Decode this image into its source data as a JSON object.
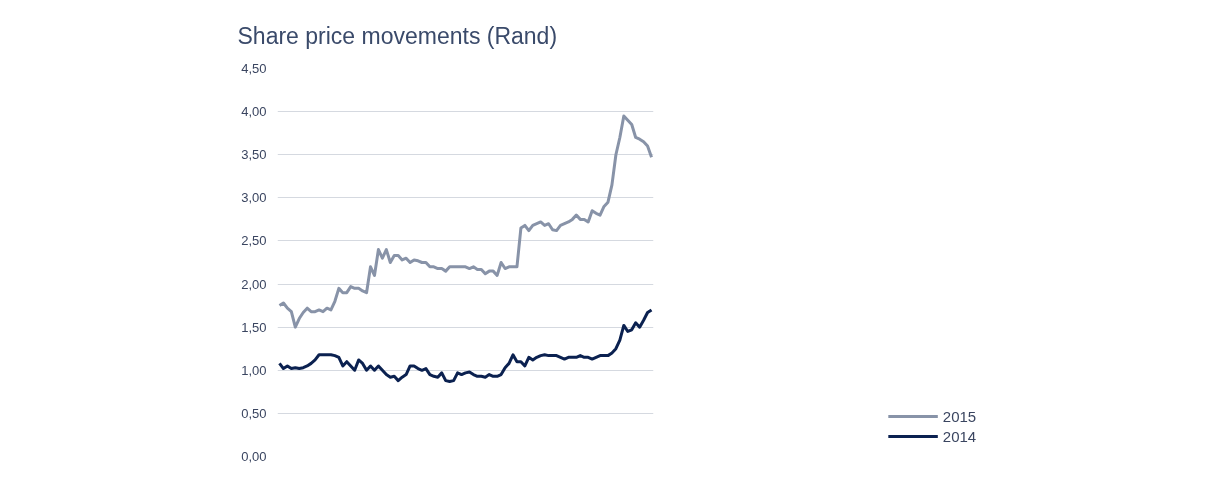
{
  "chart_data": {
    "type": "line",
    "title": "Share price movements (Rand)",
    "categories": [
      null,
      null,
      null,
      null,
      null,
      null,
      null,
      null,
      null,
      null,
      null,
      null,
      null,
      null,
      null,
      null,
      null,
      null,
      null,
      null,
      null,
      null,
      null,
      null,
      null,
      null,
      null,
      null,
      null,
      null,
      null,
      null,
      null,
      null,
      null,
      null,
      null,
      null,
      null,
      null,
      null,
      null,
      null,
      null,
      null,
      null,
      null,
      null,
      null,
      null,
      null,
      null,
      null,
      null,
      null,
      null,
      null,
      null,
      null,
      null,
      null,
      null,
      null,
      null,
      null,
      null,
      null,
      null,
      null,
      null,
      null,
      null,
      null,
      null,
      null,
      null,
      null,
      null,
      null,
      null,
      null,
      null,
      null,
      null,
      null,
      null,
      null,
      null,
      null,
      null,
      null,
      null,
      null,
      null,
      null
    ],
    "series": [
      {
        "name": "2015",
        "color": "#8893a8",
        "values": [
          1.75,
          1.78,
          1.72,
          1.68,
          1.5,
          1.6,
          1.67,
          1.72,
          1.68,
          1.68,
          1.7,
          1.68,
          1.72,
          1.7,
          1.8,
          1.95,
          1.9,
          1.9,
          1.97,
          1.95,
          1.95,
          1.92,
          1.9,
          2.2,
          2.1,
          2.4,
          2.3,
          2.4,
          2.25,
          2.33,
          2.33,
          2.28,
          2.3,
          2.25,
          2.28,
          2.27,
          2.25,
          2.25,
          2.2,
          2.2,
          2.18,
          2.18,
          2.15,
          2.2,
          2.2,
          2.2,
          2.2,
          2.2,
          2.18,
          2.2,
          2.17,
          2.17,
          2.12,
          2.15,
          2.15,
          2.1,
          2.25,
          2.18,
          2.2,
          2.2,
          2.2,
          2.65,
          2.68,
          2.62,
          2.68,
          2.7,
          2.72,
          2.68,
          2.7,
          2.63,
          2.62,
          2.68,
          2.7,
          2.72,
          2.75,
          2.8,
          2.75,
          2.75,
          2.72,
          2.85,
          2.82,
          2.8,
          2.9,
          2.95,
          3.15,
          3.5,
          3.7,
          3.95,
          3.9,
          3.85,
          3.7,
          3.68,
          3.65,
          3.6,
          3.47
        ]
      },
      {
        "name": "2014",
        "color": "#0b2150",
        "values": [
          1.08,
          1.02,
          1.05,
          1.02,
          1.03,
          1.02,
          1.03,
          1.05,
          1.08,
          1.12,
          1.18,
          1.18,
          1.18,
          1.18,
          1.17,
          1.15,
          1.05,
          1.1,
          1.05,
          1.0,
          1.12,
          1.08,
          1.0,
          1.05,
          1.0,
          1.05,
          1.0,
          0.95,
          0.92,
          0.93,
          0.88,
          0.92,
          0.95,
          1.05,
          1.05,
          1.02,
          1.0,
          1.02,
          0.95,
          0.93,
          0.92,
          0.97,
          0.88,
          0.87,
          0.88,
          0.97,
          0.95,
          0.97,
          0.98,
          0.95,
          0.93,
          0.93,
          0.92,
          0.95,
          0.93,
          0.93,
          0.95,
          1.03,
          1.08,
          1.18,
          1.1,
          1.1,
          1.05,
          1.15,
          1.12,
          1.15,
          1.17,
          1.18,
          1.17,
          1.17,
          1.17,
          1.15,
          1.13,
          1.15,
          1.15,
          1.15,
          1.17,
          1.15,
          1.15,
          1.13,
          1.15,
          1.17,
          1.17,
          1.17,
          1.2,
          1.25,
          1.35,
          1.52,
          1.45,
          1.47,
          1.55,
          1.5,
          1.58,
          1.67,
          1.7
        ]
      }
    ],
    "ylim": [
      0,
      4.5
    ],
    "yticks": [
      {
        "value": 0,
        "label": "0,00"
      },
      {
        "value": 0.5,
        "label": "0,50"
      },
      {
        "value": 1,
        "label": "1,00"
      },
      {
        "value": 1.5,
        "label": "1,50"
      },
      {
        "value": 2,
        "label": "2,00"
      },
      {
        "value": 2.5,
        "label": "2,50"
      },
      {
        "value": 3,
        "label": "3,00"
      },
      {
        "value": 3.5,
        "label": "3,50"
      },
      {
        "value": 4,
        "label": "4,00"
      },
      {
        "value": 4.5,
        "label": "4,50"
      }
    ],
    "grid": "y",
    "legend": "bottom right",
    "tick_labels": "y",
    "line_style": "solid",
    "marker": "none"
  }
}
